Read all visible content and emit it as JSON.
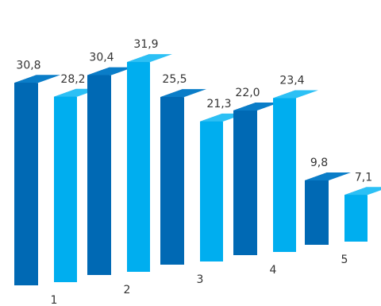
{
  "chart_data": {
    "type": "bar",
    "style": "3d-clustered",
    "categories": [
      "1",
      "2",
      "3",
      "4",
      "5"
    ],
    "series": [
      {
        "values": [
          30.8,
          30.4,
          25.5,
          22.0,
          9.8
        ],
        "data_labels": [
          "30,8",
          "30,4",
          "25,5",
          "22,0",
          "9,8"
        ]
      },
      {
        "values": [
          28.2,
          31.9,
          21.3,
          23.4,
          7.1
        ],
        "data_labels": [
          "28,2",
          "31,9",
          "21,3",
          "23,4",
          "7,1"
        ]
      }
    ],
    "title": "",
    "xlabel": "",
    "ylabel": "",
    "ylim": [
      0,
      35
    ],
    "grid": false,
    "legend": "none",
    "colors": {
      "series1_front": "#0069b4",
      "series1_side": "#004f8c",
      "series1_top": "#0a7dc8",
      "series2_front": "#00aeef",
      "series2_side": "#0088c4",
      "series2_top": "#2cc0f5"
    }
  }
}
